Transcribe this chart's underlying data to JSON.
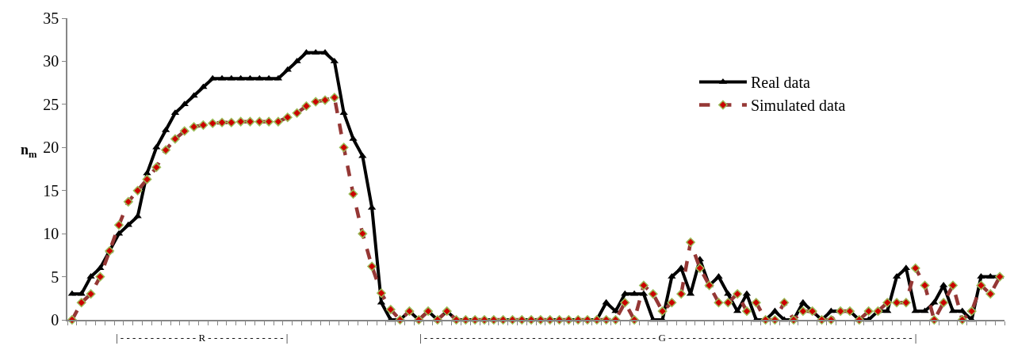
{
  "chart_data": {
    "type": "line",
    "ylabel": "n$_{m}$",
    "categories": [
      null,
      null,
      null,
      null,
      null,
      null,
      null,
      null,
      null,
      null,
      null,
      null,
      null,
      null,
      null,
      null,
      null,
      null,
      null,
      null,
      null,
      null,
      null,
      null,
      null,
      null,
      null,
      null,
      null,
      null,
      null,
      null,
      null,
      null,
      null,
      null,
      null,
      null,
      null,
      null,
      null,
      null,
      null,
      null,
      null,
      null,
      null,
      null,
      null,
      null,
      null,
      null,
      null,
      null,
      null,
      null,
      null,
      null,
      null,
      null,
      null,
      null,
      null,
      null,
      null,
      null,
      null,
      null,
      null,
      null,
      null,
      null,
      null,
      null,
      null,
      null,
      null,
      null,
      null,
      null,
      null,
      null,
      null,
      null,
      null,
      null,
      null,
      null,
      null,
      null,
      null,
      null,
      null,
      null,
      null,
      null,
      null,
      null,
      null,
      null
    ],
    "series": [
      {
        "name": "Real data",
        "color": "#000000",
        "marker": "triangle",
        "line_style": "solid",
        "values": [
          3,
          3,
          5,
          6,
          8,
          10,
          11,
          12,
          17,
          20,
          22,
          24,
          25,
          26,
          27,
          28,
          28,
          28,
          28,
          28,
          28,
          28,
          28,
          29,
          30,
          31,
          31,
          31,
          30,
          24,
          21,
          19,
          13,
          2,
          0,
          0,
          1,
          0,
          1,
          0,
          1,
          0,
          0,
          0,
          0,
          0,
          0,
          0,
          0,
          0,
          0,
          0,
          0,
          0,
          0,
          0,
          0,
          2,
          1,
          3,
          3,
          3,
          0,
          0,
          5,
          6,
          3,
          7,
          4,
          5,
          3,
          1,
          3,
          0,
          0,
          1,
          0,
          0,
          2,
          1,
          0,
          1,
          1,
          1,
          0,
          0,
          1,
          1,
          5,
          6,
          1,
          1,
          2,
          4,
          1,
          1,
          0,
          5,
          5,
          5
        ]
      },
      {
        "name": "Simulated data",
        "color": "#953735",
        "marker": "diamond",
        "line_style": "dashed",
        "values": [
          0,
          2,
          3,
          5,
          8,
          11,
          13.7,
          15,
          16.3,
          17.7,
          19.7,
          21,
          21.9,
          22.4,
          22.6,
          22.8,
          22.9,
          22.9,
          23,
          23,
          23,
          23,
          23,
          23.5,
          24,
          24.8,
          25.3,
          25.5,
          25.8,
          20,
          14.6,
          10,
          6.2,
          3.1,
          1.2,
          0,
          1,
          0,
          1,
          0,
          1,
          0,
          0,
          0,
          0,
          0,
          0,
          0,
          0,
          0,
          0,
          0,
          0,
          0,
          0,
          0,
          0,
          0,
          0,
          2,
          0,
          4,
          3,
          1,
          2,
          3,
          9,
          6,
          4,
          2,
          2,
          3,
          1,
          2,
          0,
          0,
          2,
          0,
          1,
          1,
          0,
          0,
          1,
          1,
          0,
          1,
          1,
          2,
          2,
          2,
          6,
          4,
          0,
          2,
          4,
          0,
          1,
          4,
          3,
          5
        ]
      }
    ],
    "ylim": [
      0,
      35
    ],
    "yticks": [
      0,
      5,
      10,
      15,
      20,
      25,
      30,
      35
    ],
    "legend": "top right",
    "annotations": [
      "| - - - - - - - - - - - - - R - - - - - - - - - - - - - |",
      "| - - - - - - - - - - - - - - - - - - - - - - - - - - - - - - - - - - - - - - - G - - - - - - - - - - - - - - - - - - - - - - - - - - - - - - - - - - - - - - - - - |"
    ]
  }
}
